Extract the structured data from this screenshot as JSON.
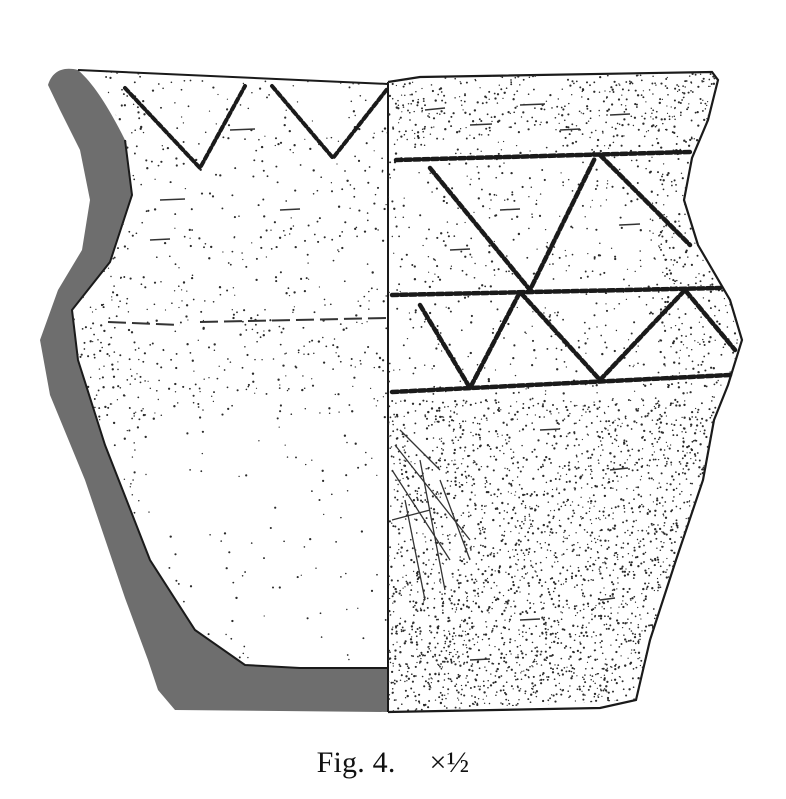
{
  "figure": {
    "caption_label": "Fig. 4.",
    "caption_scale": "×½",
    "ink_color": "#1a1a1a",
    "section_fill_color": "#6e6e6e",
    "background_color": "#ffffff"
  }
}
